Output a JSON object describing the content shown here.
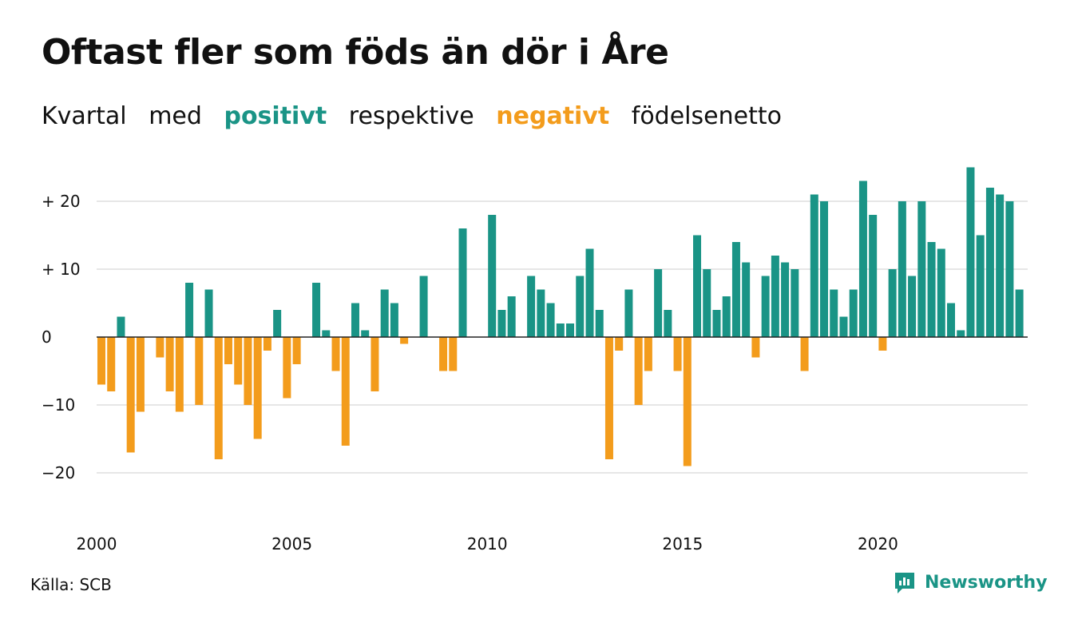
{
  "title": "Oftast fler som föds än dör i Åre",
  "subtitle": {
    "w1": "Kvartal",
    "w2": "med",
    "w3": "positivt",
    "w4": "respektive",
    "w5": "negativt",
    "w6": "födelsenetto"
  },
  "colors": {
    "positive": "#1a9486",
    "negative": "#f39c1c",
    "grid": "#dddddd",
    "text": "#111111"
  },
  "source": "Källa: SCB",
  "logo": {
    "text": "Newsworthy",
    "icon": "chart-bubble-icon"
  },
  "chart_data": {
    "type": "bar",
    "title": "Oftast fler som föds än dör i Åre",
    "x_start_year": 2000,
    "categories": [
      "2000 Q1",
      "2000 Q2",
      "2000 Q3",
      "2000 Q4",
      "2001 Q1",
      "2001 Q2",
      "2001 Q3",
      "2001 Q4",
      "2002 Q1",
      "2002 Q2",
      "2002 Q3",
      "2002 Q4",
      "2003 Q1",
      "2003 Q2",
      "2003 Q3",
      "2003 Q4",
      "2004 Q1",
      "2004 Q2",
      "2004 Q3",
      "2004 Q4",
      "2005 Q1",
      "2005 Q2",
      "2005 Q3",
      "2005 Q4",
      "2006 Q1",
      "2006 Q2",
      "2006 Q3",
      "2006 Q4",
      "2007 Q1",
      "2007 Q2",
      "2007 Q3",
      "2007 Q4",
      "2008 Q1",
      "2008 Q2",
      "2008 Q3",
      "2008 Q4",
      "2009 Q1",
      "2009 Q2",
      "2009 Q3",
      "2009 Q4",
      "2010 Q1",
      "2010 Q2",
      "2010 Q3",
      "2010 Q4",
      "2011 Q1",
      "2011 Q2",
      "2011 Q3",
      "2011 Q4",
      "2012 Q1",
      "2012 Q2",
      "2012 Q3",
      "2012 Q4",
      "2013 Q1",
      "2013 Q2",
      "2013 Q3",
      "2013 Q4",
      "2014 Q1",
      "2014 Q2",
      "2014 Q3",
      "2014 Q4",
      "2015 Q1",
      "2015 Q2",
      "2015 Q3",
      "2015 Q4",
      "2016 Q1",
      "2016 Q2",
      "2016 Q3",
      "2016 Q4",
      "2017 Q1",
      "2017 Q2",
      "2017 Q3",
      "2017 Q4",
      "2018 Q1",
      "2018 Q2",
      "2018 Q3",
      "2018 Q4",
      "2019 Q1",
      "2019 Q2",
      "2019 Q3",
      "2019 Q4",
      "2020 Q1",
      "2020 Q2",
      "2020 Q3",
      "2020 Q4",
      "2021 Q1",
      "2021 Q2",
      "2021 Q3",
      "2021 Q4",
      "2022 Q1",
      "2022 Q2",
      "2022 Q3",
      "2022 Q4",
      "2023 Q1",
      "2023 Q2",
      "2023 Q3",
      "2023 Q4"
    ],
    "values": [
      -7,
      -8,
      3,
      -17,
      -11,
      0,
      -3,
      -8,
      -11,
      8,
      -10,
      7,
      -18,
      -4,
      -7,
      -10,
      -15,
      -2,
      4,
      -9,
      -4,
      0,
      8,
      1,
      -5,
      -16,
      5,
      1,
      -8,
      7,
      5,
      -1,
      0,
      9,
      0,
      -5,
      -5,
      16,
      0,
      0,
      18,
      4,
      6,
      0,
      9,
      7,
      5,
      2,
      2,
      9,
      13,
      4,
      -18,
      -2,
      7,
      -10,
      -5,
      10,
      4,
      -5,
      -19,
      15,
      10,
      4,
      6,
      14,
      11,
      -3,
      9,
      12,
      11,
      10,
      -5,
      21,
      20,
      7,
      3,
      7,
      23,
      18,
      -2,
      10,
      20,
      9,
      20,
      14,
      13,
      5,
      1,
      25,
      15,
      22,
      21,
      20,
      7,
      0
    ],
    "y_ticks": [
      {
        "value": 20,
        "label": "+ 20"
      },
      {
        "value": 10,
        "label": "+ 10"
      },
      {
        "value": 0,
        "label": "0"
      },
      {
        "value": -10,
        "label": "−10"
      },
      {
        "value": -20,
        "label": "−20"
      }
    ],
    "x_ticks": [
      "2000",
      "2005",
      "2010",
      "2015",
      "2020"
    ],
    "ylim": [
      -25,
      25
    ],
    "grid": true,
    "legend": "none"
  }
}
